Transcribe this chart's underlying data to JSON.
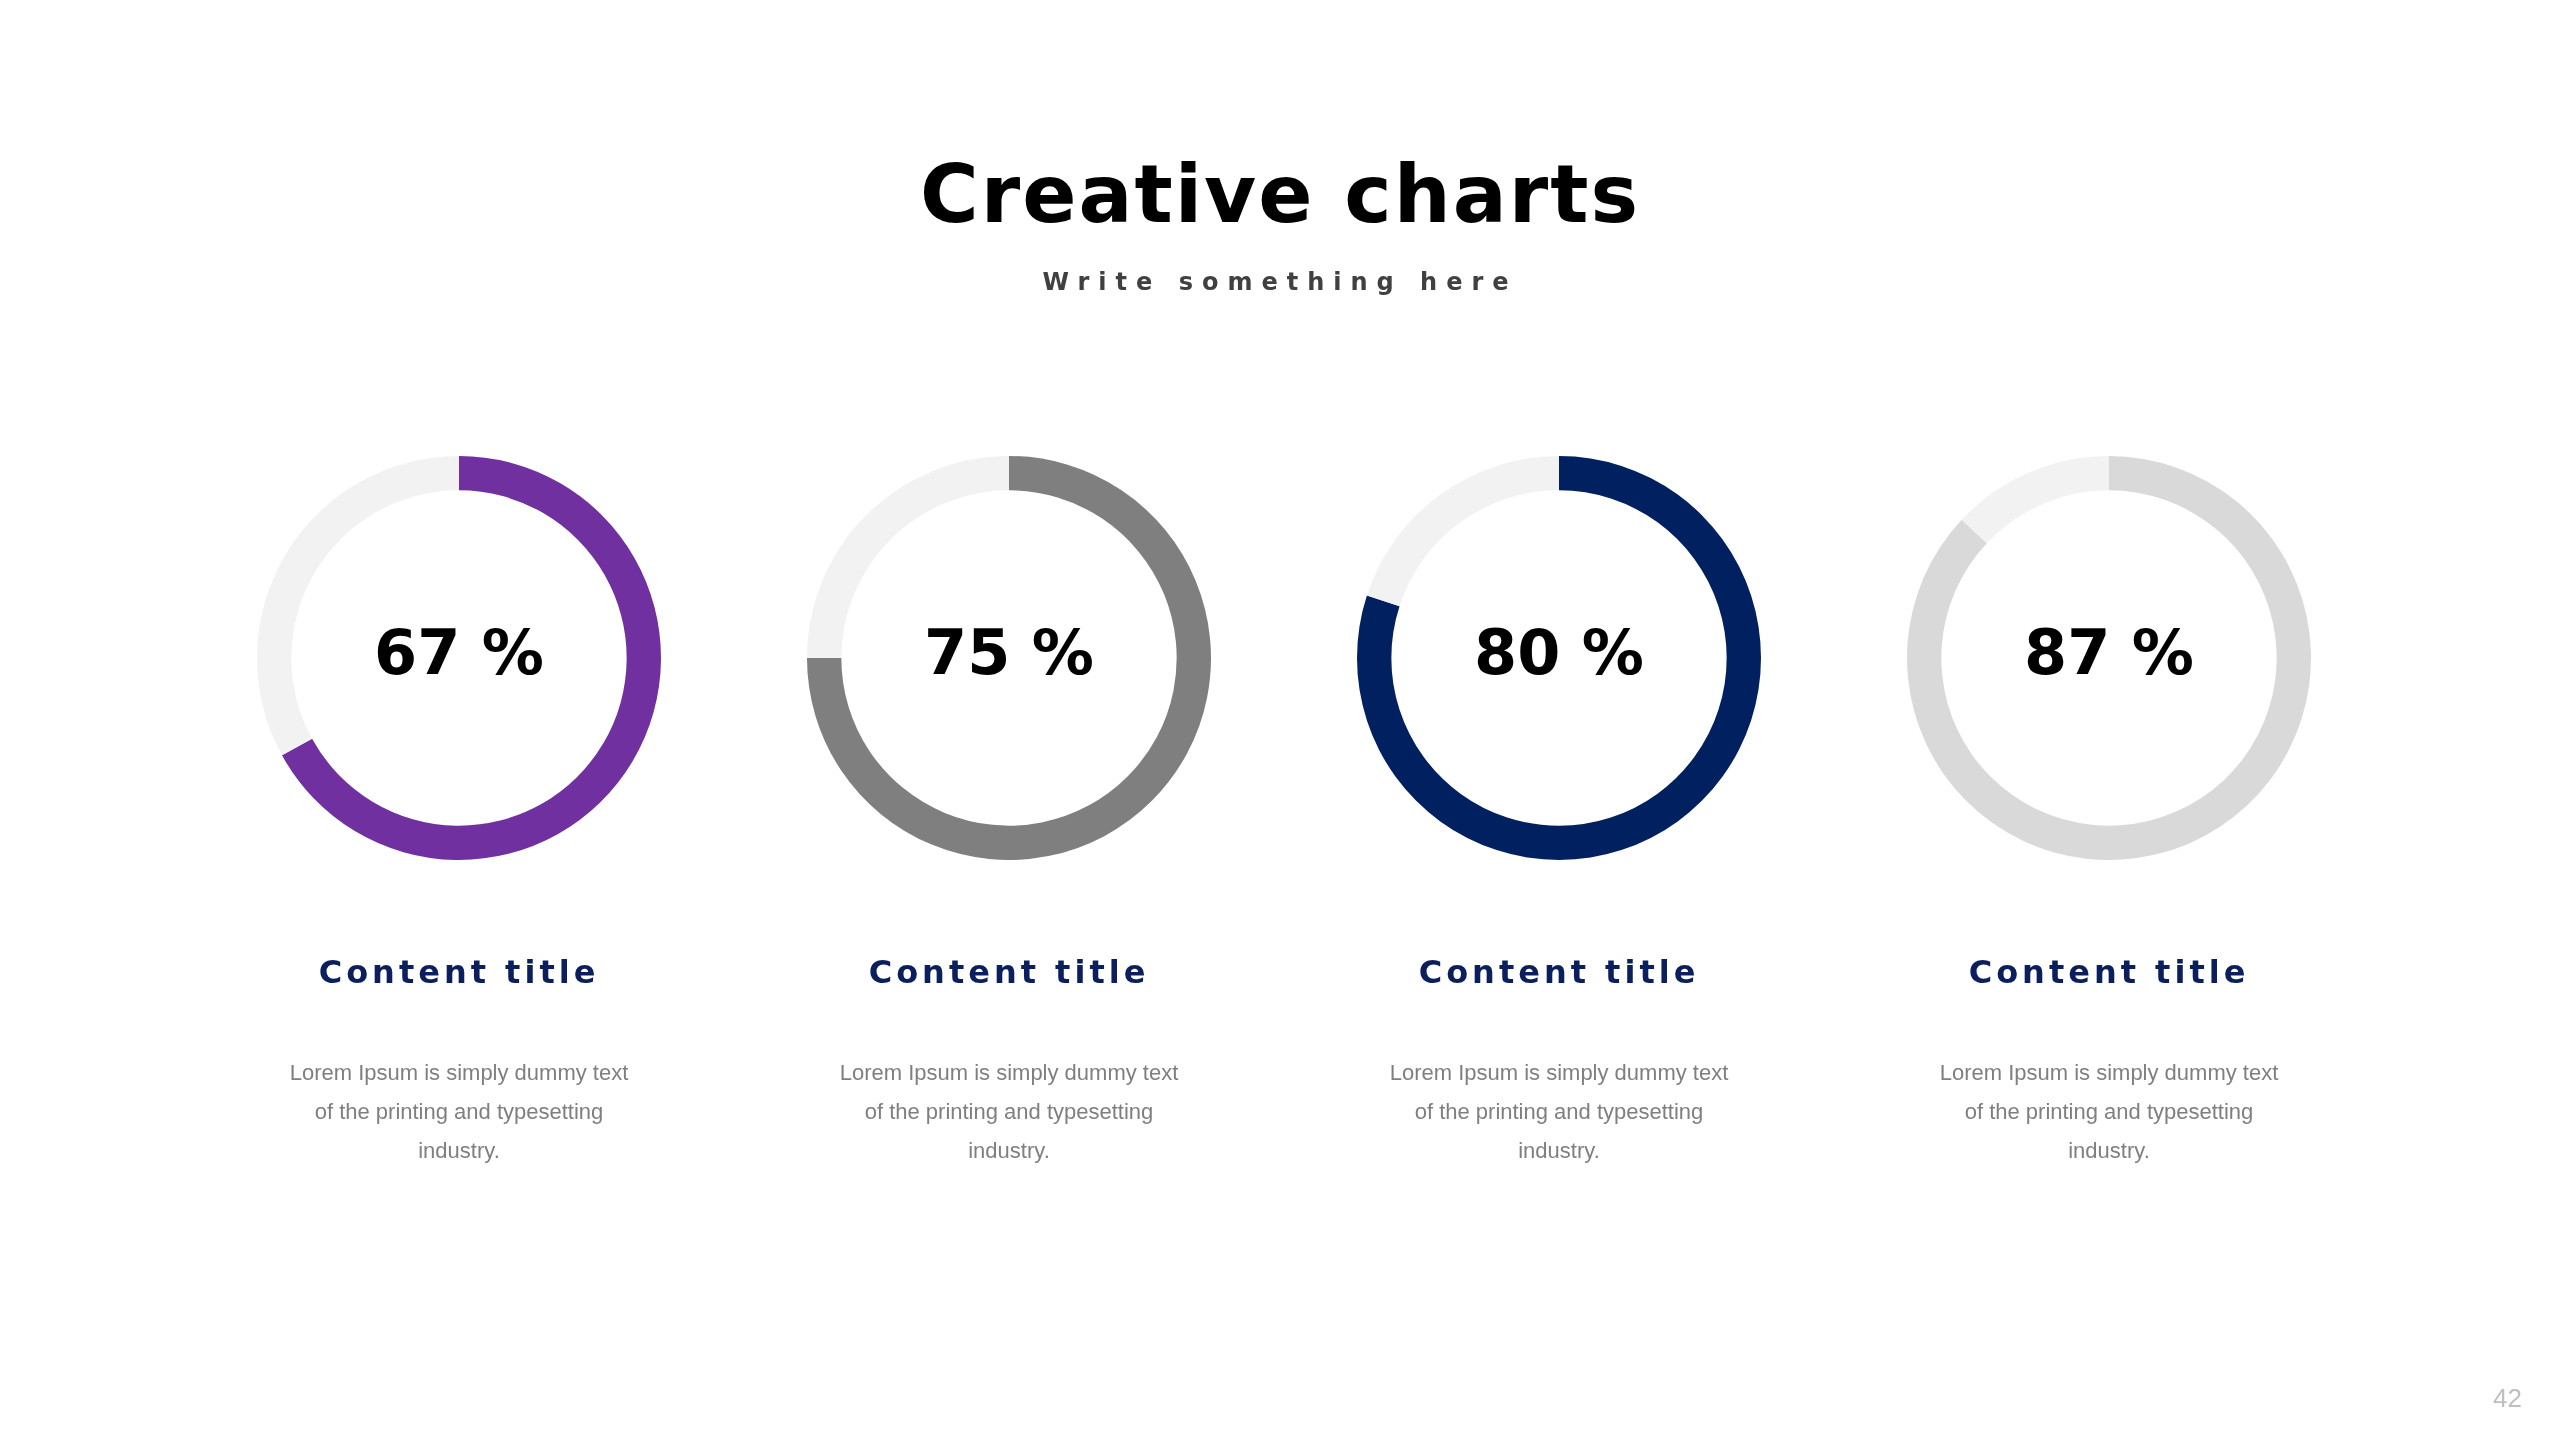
{
  "chart_data": [
    {
      "type": "other",
      "title": "Creative charts",
      "subtitle": "Write something here",
      "annotations": [
        "42"
      ]
    },
    {
      "type": "donut",
      "title": "Content title",
      "categories": [
        null,
        null
      ],
      "values": [
        67,
        33
      ],
      "colors": [
        "#7030a0",
        "#f2f2f2"
      ],
      "value_labels": [
        "67 %",
        null
      ],
      "annotations": [
        "Lorem Ipsum is simply dummy text of the printing and typesetting industry."
      ]
    },
    {
      "type": "donut",
      "title": "Content title",
      "categories": [
        null,
        null
      ],
      "values": [
        75,
        25
      ],
      "colors": [
        "#7f7f7f",
        "#f2f2f2"
      ],
      "value_labels": [
        "75 %",
        null
      ],
      "annotations": [
        "Lorem Ipsum is simply dummy text of the printing and typesetting industry."
      ]
    },
    {
      "type": "donut",
      "title": "Content title",
      "categories": [
        null,
        null
      ],
      "values": [
        80,
        20
      ],
      "colors": [
        "#002060",
        "#f2f2f2"
      ],
      "value_labels": [
        "80 %",
        null
      ],
      "annotations": [
        "Lorem Ipsum is simply dummy text of the printing and typesetting industry."
      ]
    },
    {
      "type": "donut",
      "title": "Content title",
      "categories": [
        null,
        null
      ],
      "values": [
        87,
        13
      ],
      "colors": [
        "#d9d9d9",
        "#f2f2f2"
      ],
      "value_labels": [
        "87 %",
        null
      ],
      "annotations": [
        "Lorem Ipsum is simply dummy text of the printing and typesetting industry."
      ]
    }
  ]
}
